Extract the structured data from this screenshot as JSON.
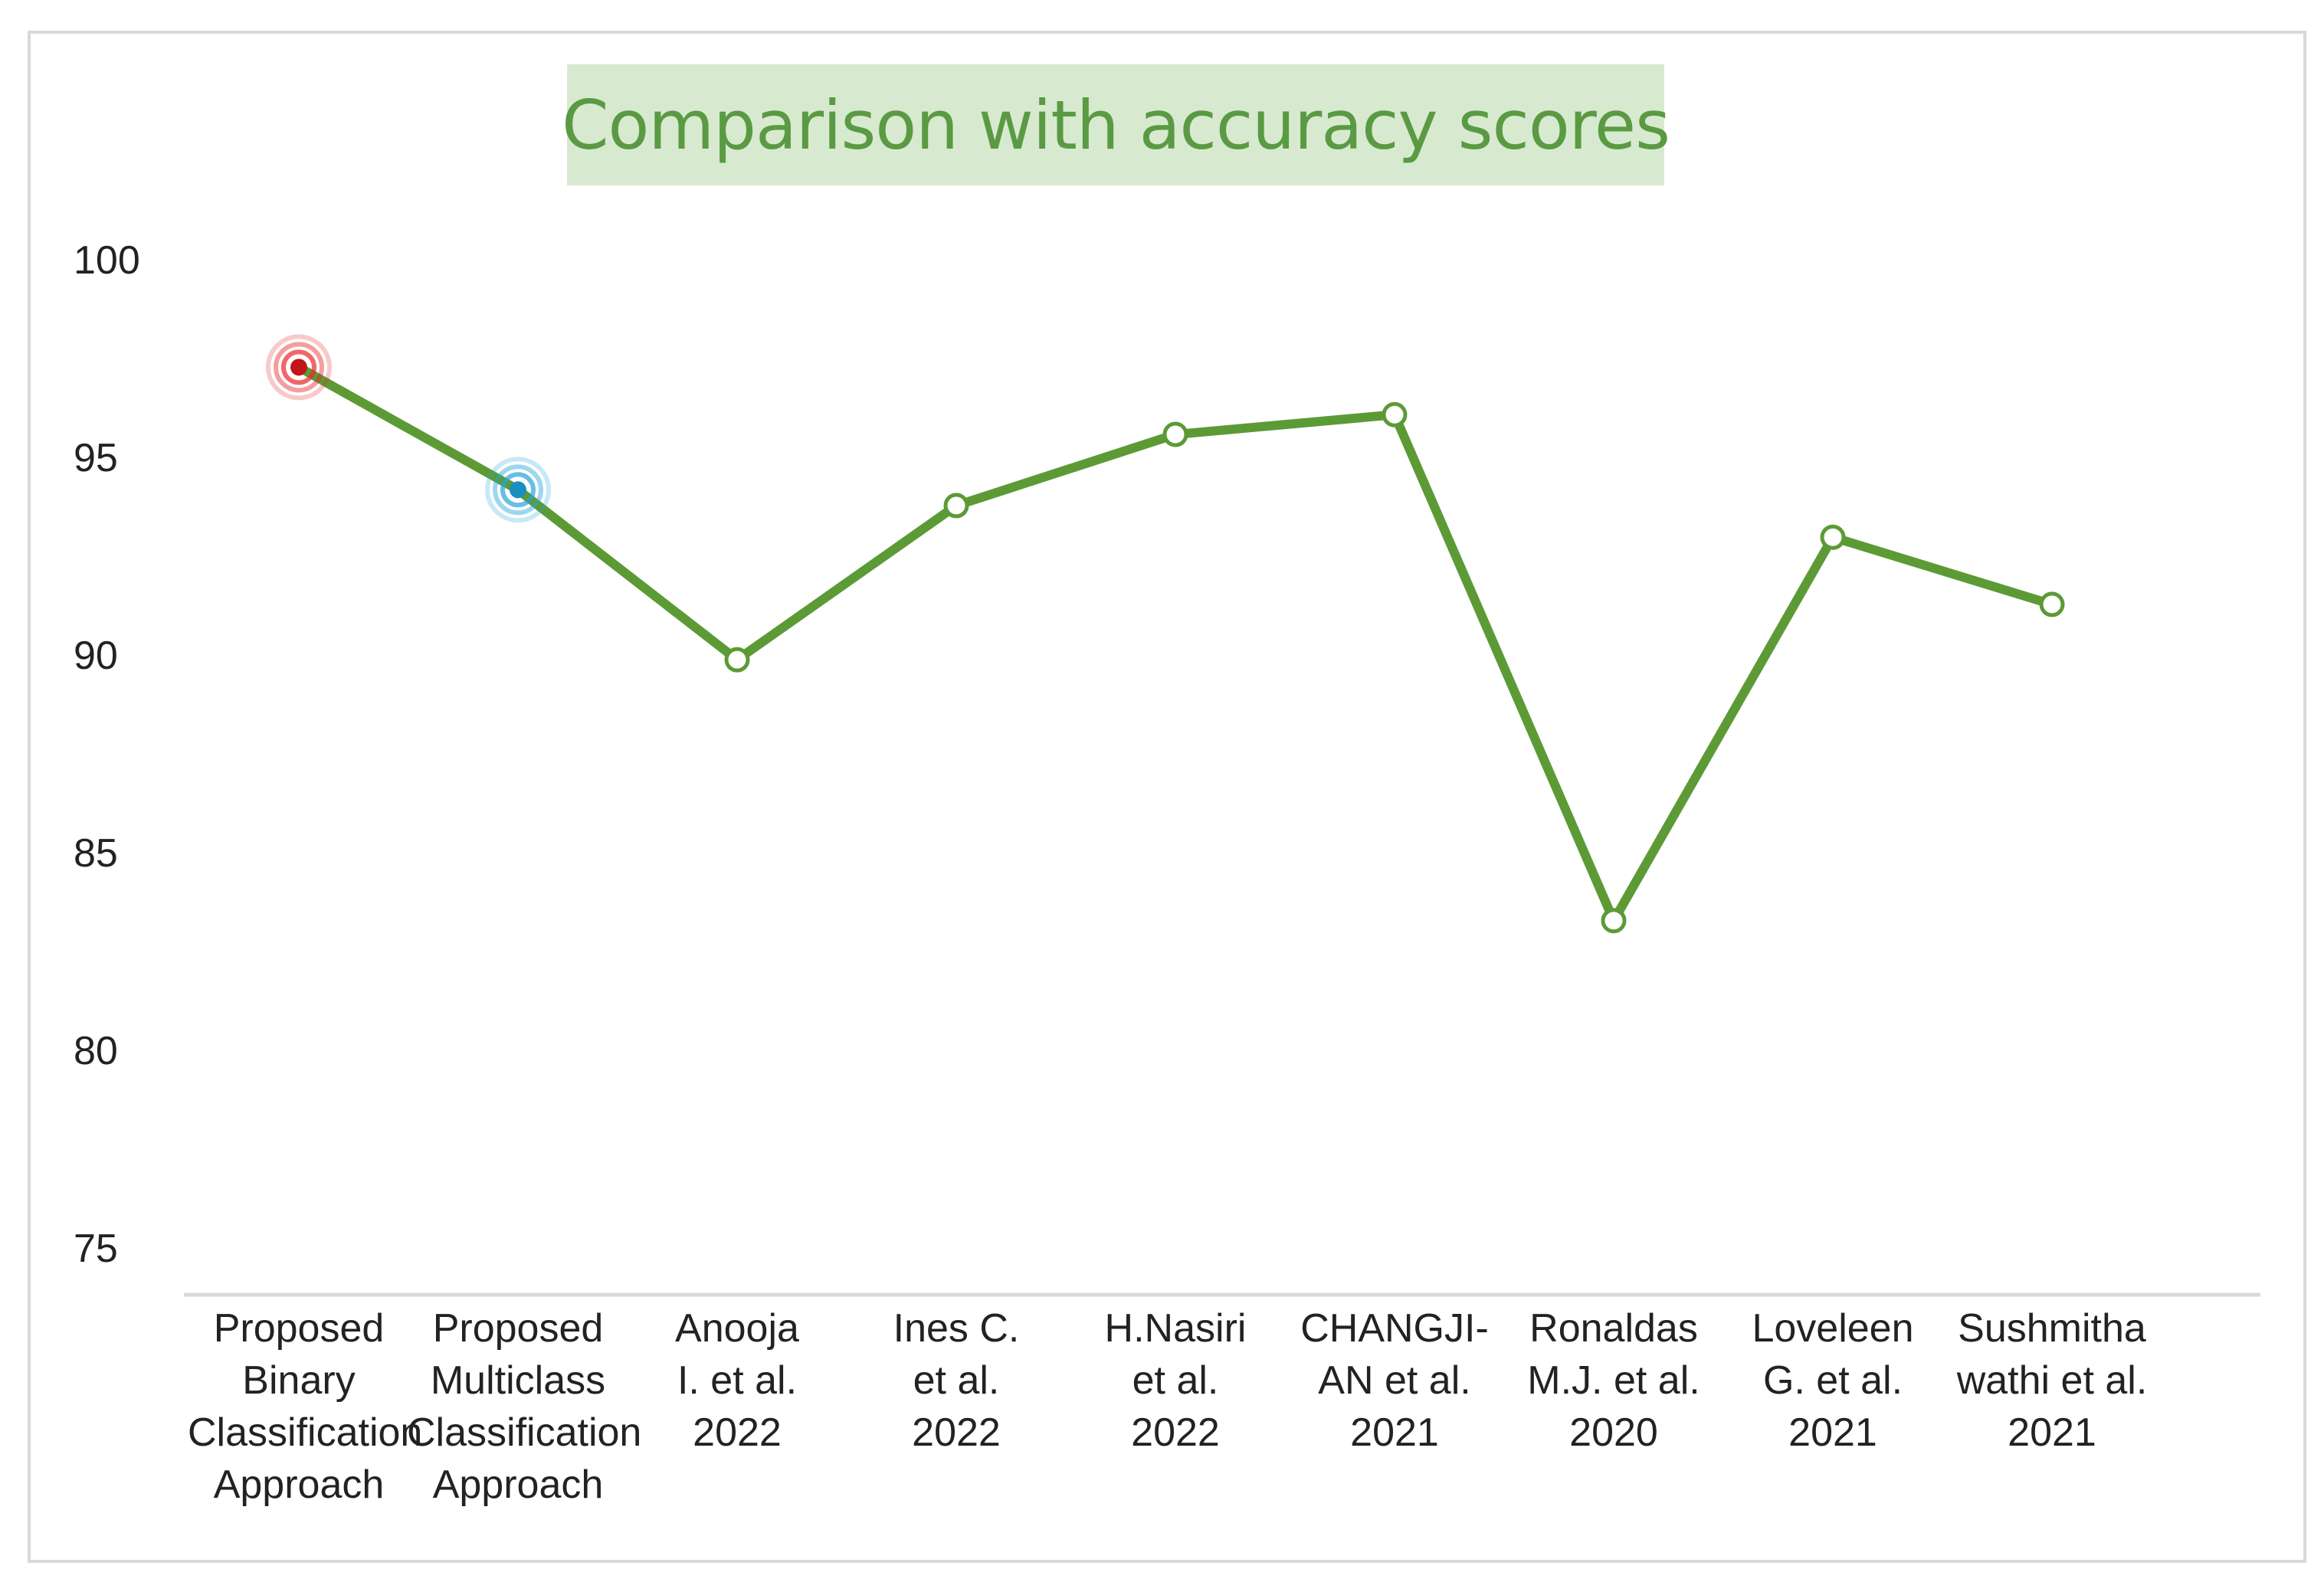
{
  "chart_data": {
    "type": "line",
    "title": "Comparison with accuracy scores",
    "xlabel": "",
    "ylabel": "",
    "ylim": [
      75,
      100
    ],
    "yticks": [
      "100",
      "95",
      "90",
      "85",
      "80",
      "75"
    ],
    "grid": false,
    "legend": "none",
    "categories": [
      [
        "Proposed",
        "Binary",
        "Classification",
        "Approach"
      ],
      [
        "Proposed",
        "Multiclass",
        "Classification",
        "Approach"
      ],
      [
        "Anooja",
        "I. et al.",
        "2022"
      ],
      [
        "Ines C.",
        "et  al.",
        "2022"
      ],
      [
        "H.Nasiri",
        "et al.",
        "2022"
      ],
      [
        "CHANGJI-",
        "AN  et al.",
        "2021"
      ],
      [
        "Ronaldas",
        "M.J. et al.",
        "2020"
      ],
      [
        "Loveleen",
        "G. et al.",
        "2021"
      ],
      [
        "Sushmitha",
        "wathi et al.",
        "2021"
      ]
    ],
    "series": [
      {
        "values": [
          97.3,
          94.2,
          89.9,
          93.8,
          95.6,
          96.1,
          83.3,
          93.0,
          91.3
        ]
      }
    ],
    "colors": {
      "line": "#5c9a36",
      "highlight_binary": "#e8262b",
      "highlight_multiclass": "#29a3d9",
      "axis": "#d9d9d9"
    }
  }
}
